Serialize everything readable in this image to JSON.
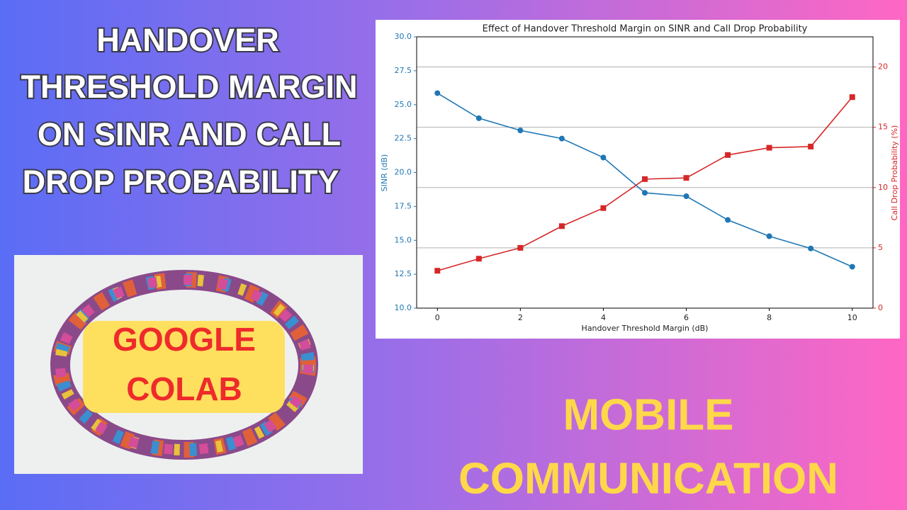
{
  "headline": [
    "HANDOVER",
    "THRESHOLD MARGIN",
    "ON SINR AND CALL",
    "DROP PROBABILITY"
  ],
  "badge": [
    "GOOGLE",
    "COLAB"
  ],
  "footer": [
    "MOBILE",
    "COMMUNICATION"
  ],
  "chart_data": {
    "type": "line",
    "title": "Effect of Handover Threshold Margin on SINR and Call Drop Probability",
    "x_label": "Handover Threshold Margin (dB)",
    "y_label": "SINR (dB)",
    "y2_label": "Call Drop Probability (%)",
    "x": [
      0,
      1,
      2,
      3,
      4,
      5,
      6,
      7,
      8,
      9,
      10
    ],
    "series": [
      {
        "name": "SINR (dB)",
        "color": "#1f77b4",
        "marker": "circle",
        "values": [
          25.85,
          24.0,
          23.1,
          22.5,
          21.1,
          18.5,
          18.25,
          16.5,
          15.3,
          14.4,
          13.05
        ]
      },
      {
        "name": "Call Drop Probability (%)",
        "color": "#d62728",
        "marker": "square",
        "axis": "y2",
        "values": [
          3.1,
          4.1,
          5.0,
          6.8,
          8.3,
          10.7,
          10.8,
          12.7,
          13.3,
          13.4,
          17.5
        ]
      }
    ],
    "xlim": [
      -0.5,
      10.5
    ],
    "xticks": [
      0,
      2,
      4,
      6,
      8,
      10
    ],
    "ylim": [
      10,
      30
    ],
    "yticks": [
      {
        "value": 10,
        "label": "10.0"
      },
      12.5,
      {
        "value": 15,
        "label": "15.0"
      },
      17.5,
      {
        "value": 20,
        "label": "20.0"
      },
      22.5,
      {
        "value": 25,
        "label": "25.0"
      },
      27.5,
      {
        "value": 30,
        "label": "30.0"
      }
    ],
    "y2lim": [
      0,
      22.5
    ],
    "y2ticks": [
      0,
      5,
      10,
      15,
      20
    ],
    "grid": "y2"
  }
}
